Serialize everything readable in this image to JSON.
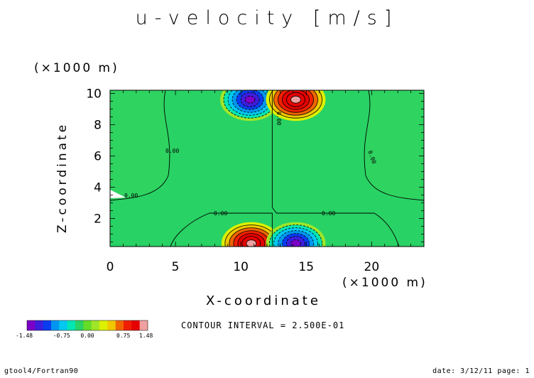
{
  "chart_data": {
    "type": "heatmap",
    "title": "u-velocity [m/s]",
    "xlabel": "X-coordinate",
    "ylabel": "Z-coordinate",
    "x_unit": "(×1000 m)",
    "y_unit": "(×1000 m)",
    "xlim": [
      0,
      24
    ],
    "ylim": [
      0.2,
      10.2
    ],
    "x_ticks": [
      "0",
      "5",
      "10",
      "15",
      "20"
    ],
    "y_ticks": [
      "2",
      "4",
      "6",
      "8",
      "10"
    ],
    "contour_interval": "CONTOUR INTERVAL = 2.500E-01",
    "contour_labels": [
      "0.00",
      "0.00",
      "0.00",
      "0.00",
      "0.00",
      "0.00"
    ],
    "colorbar": {
      "tick_labels": [
        "-1.48",
        "-0.75",
        "0.00",
        "0.75",
        "1.48"
      ],
      "colors": [
        "#7b00c8",
        "#3c1edc",
        "#0a3cf0",
        "#0096f0",
        "#00c8f0",
        "#00e6b4",
        "#28d264",
        "#64dc28",
        "#a0e628",
        "#dcf000",
        "#f0c800",
        "#f06400",
        "#f01e00",
        "#e60000",
        "#f0a0a0"
      ]
    },
    "features": [
      {
        "name": "negative core top",
        "x": 10.7,
        "z": 9.6,
        "value": -1.48
      },
      {
        "name": "positive core top",
        "x": 14.2,
        "z": 9.6,
        "value": 1.48
      },
      {
        "name": "positive core bottom",
        "x": 10.8,
        "z": 0.4,
        "value": 1.48
      },
      {
        "name": "negative core bottom",
        "x": 14.2,
        "z": 0.4,
        "value": -1.48
      }
    ],
    "background_value": 0.0,
    "background_color": "#28d264"
  },
  "footer": {
    "left": "gtool4/Fortran90",
    "right": "date: 3/12/11 page: 1"
  }
}
